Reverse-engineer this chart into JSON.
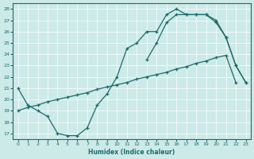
{
  "xlabel": "Humidex (Indice chaleur)",
  "xlim": [
    -0.5,
    23.5
  ],
  "ylim": [
    16.5,
    28.5
  ],
  "yticks": [
    17,
    18,
    19,
    20,
    21,
    22,
    23,
    24,
    25,
    26,
    27,
    28
  ],
  "xticks": [
    0,
    1,
    2,
    3,
    4,
    5,
    6,
    7,
    8,
    9,
    10,
    11,
    12,
    13,
    14,
    15,
    16,
    17,
    18,
    19,
    20,
    21,
    22,
    23
  ],
  "bg_color": "#cceae8",
  "line_color": "#1a6b6b",
  "grid_color": "#ffffff",
  "curve1_x": [
    0,
    1,
    2,
    3,
    4,
    5,
    6,
    7,
    8,
    9,
    10,
    11,
    12,
    13,
    14,
    15,
    16,
    17,
    18,
    19,
    20,
    21,
    22,
    23
  ],
  "curve1_y": [
    21.0,
    19.5,
    19.0,
    18.5,
    17.0,
    16.8,
    16.8,
    17.5,
    19.5,
    20.5,
    22.0,
    24.5,
    25.0,
    26.0,
    26.0,
    27.5,
    28.0,
    27.5,
    27.5,
    27.5,
    27.0,
    25.5,
    23.0,
    21.5
  ],
  "curve2_x": [
    0,
    1,
    2,
    3,
    4,
    5,
    6,
    7,
    8,
    9,
    10,
    11,
    12,
    13,
    14,
    15,
    16,
    17,
    18,
    19,
    20,
    21,
    22
  ],
  "curve2_y": [
    19.0,
    19.3,
    19.5,
    19.8,
    20.0,
    20.2,
    20.4,
    20.6,
    20.9,
    21.1,
    21.3,
    21.5,
    21.8,
    22.0,
    22.2,
    22.4,
    22.7,
    22.9,
    23.2,
    23.4,
    23.7,
    23.9,
    21.5
  ],
  "curve3_x": [
    13,
    14,
    15,
    16,
    17,
    18,
    19,
    20,
    21,
    22,
    23
  ],
  "curve3_y": [
    23.5,
    25.0,
    26.8,
    27.5,
    27.5,
    27.5,
    27.5,
    26.8,
    25.5,
    23.0,
    21.5
  ]
}
